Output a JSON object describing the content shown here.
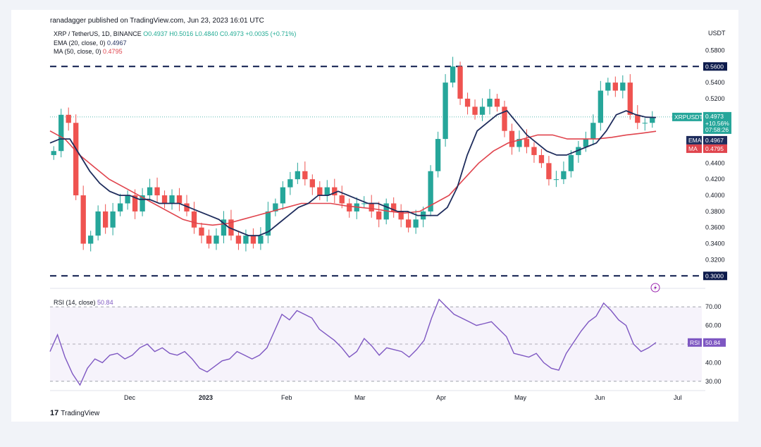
{
  "header": {
    "published": "ranadagger published on TradingView.com, Jun 23, 2023 16:01 UTC"
  },
  "legend": {
    "symbol": "XRP / TetherUS, 1D, BINANCE",
    "ohlc": "O0.4937 H0.5016 L0.4840 C0.4973 +0.0035 (+0.71%)",
    "ema_label": "EMA (20, close, 0)",
    "ema_value": "0.4967",
    "ma_label": "MA (50, close, 0)",
    "ma_value": "0.4795"
  },
  "rsi_legend": {
    "label": "RSI (14, close)",
    "value": "50.84"
  },
  "footer": {
    "brand": "TradingView",
    "logo": "17"
  },
  "chart_data": {
    "type": "candlestick",
    "symbol": "XRPUSDT",
    "currency": "USDT",
    "x": [
      "Dec",
      "2023",
      "Feb",
      "Mar",
      "Apr",
      "May",
      "Jun",
      "Jul"
    ],
    "y_ticks": [
      "0.5800",
      "0.5400",
      "0.5200",
      "0.4400",
      "0.4200",
      "0.4000",
      "0.3800",
      "0.3600",
      "0.3400",
      "0.3200"
    ],
    "ylim": [
      0.295,
      0.59
    ],
    "horizontal_lines": [
      {
        "value": 0.56,
        "label": "0.5600"
      },
      {
        "value": 0.3,
        "label": "0.3000"
      }
    ],
    "price_tags": {
      "symbol": "XRPUSDT",
      "price": "0.4973",
      "change": "+10.56%",
      "countdown": "07:58:26",
      "ema_tag": "EMA",
      "ema_value": "0.4967",
      "ma_tag": "MA",
      "ma_value": "0.4795"
    },
    "close_series": [
      0.455,
      0.5,
      0.49,
      0.4,
      0.34,
      0.35,
      0.38,
      0.36,
      0.38,
      0.39,
      0.4,
      0.38,
      0.4,
      0.41,
      0.4,
      0.39,
      0.4,
      0.39,
      0.38,
      0.36,
      0.35,
      0.34,
      0.35,
      0.37,
      0.35,
      0.34,
      0.35,
      0.34,
      0.35,
      0.38,
      0.39,
      0.41,
      0.42,
      0.43,
      0.42,
      0.41,
      0.4,
      0.41,
      0.4,
      0.39,
      0.38,
      0.39,
      0.39,
      0.38,
      0.37,
      0.39,
      0.38,
      0.37,
      0.36,
      0.37,
      0.38,
      0.43,
      0.47,
      0.54,
      0.56,
      0.52,
      0.51,
      0.5,
      0.51,
      0.52,
      0.51,
      0.48,
      0.46,
      0.47,
      0.46,
      0.45,
      0.44,
      0.42,
      0.42,
      0.43,
      0.45,
      0.46,
      0.47,
      0.49,
      0.53,
      0.54,
      0.53,
      0.54,
      0.5,
      0.49,
      0.49,
      0.497
    ],
    "ema_series": [
      0.465,
      0.47,
      0.47,
      0.45,
      0.43,
      0.415,
      0.405,
      0.4,
      0.4,
      0.395,
      0.395,
      0.39,
      0.39,
      0.39,
      0.385,
      0.38,
      0.375,
      0.37,
      0.36,
      0.355,
      0.35,
      0.35,
      0.355,
      0.365,
      0.375,
      0.385,
      0.39,
      0.4,
      0.4,
      0.405,
      0.4,
      0.395,
      0.39,
      0.39,
      0.385,
      0.38,
      0.38,
      0.375,
      0.375,
      0.375,
      0.385,
      0.41,
      0.45,
      0.48,
      0.49,
      0.5,
      0.505,
      0.49,
      0.475,
      0.465,
      0.455,
      0.45,
      0.45,
      0.455,
      0.46,
      0.465,
      0.48,
      0.5,
      0.505,
      0.5,
      0.497,
      0.4967
    ],
    "ma_series": [
      0.48,
      0.47,
      0.45,
      0.435,
      0.42,
      0.41,
      0.4,
      0.39,
      0.38,
      0.37,
      0.365,
      0.363,
      0.365,
      0.37,
      0.375,
      0.38,
      0.385,
      0.39,
      0.39,
      0.39,
      0.387,
      0.385,
      0.383,
      0.38,
      0.378,
      0.38,
      0.39,
      0.4,
      0.42,
      0.44,
      0.455,
      0.465,
      0.47,
      0.475,
      0.475,
      0.47,
      0.47,
      0.47,
      0.472,
      0.475,
      0.477,
      0.4795
    ],
    "rsi": {
      "label": "RSI (14, close)",
      "value": "50.84",
      "tag": "RSI",
      "y_ticks": [
        "70.00",
        "60.00",
        "40.00",
        "30.00"
      ],
      "ylim": [
        25,
        75
      ],
      "series": [
        46,
        55,
        43,
        34,
        28,
        37,
        42,
        40,
        44,
        45,
        42,
        44,
        48,
        50,
        46,
        48,
        45,
        44,
        46,
        42,
        37,
        35,
        38,
        41,
        42,
        46,
        44,
        42,
        44,
        48,
        57,
        66,
        63,
        68,
        66,
        64,
        58,
        55,
        52,
        48,
        43,
        46,
        53,
        49,
        44,
        48,
        47,
        46,
        43,
        47,
        52,
        64,
        74,
        70,
        66,
        64,
        62,
        60,
        61,
        62,
        58,
        54,
        45,
        44,
        43,
        45,
        40,
        37,
        36,
        45,
        51,
        57,
        62,
        65,
        72,
        68,
        63,
        60,
        50,
        46,
        48,
        50.84
      ]
    },
    "colors": {
      "up": "#26a69a",
      "down": "#ef5350",
      "ema": "#1e2c5c",
      "ma": "#e0444d",
      "rsi": "#7e57c2",
      "level": "#0c1a4b"
    }
  }
}
